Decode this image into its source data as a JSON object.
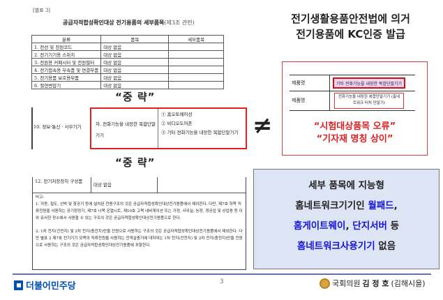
{
  "doc": {
    "annex": "[별표 3]",
    "title": "공급자적합성확인대상 전기용품의 세부품목",
    "title_suffix": "(제3조 관련)",
    "table1": {
      "headers": [
        "분류",
        "품목",
        "세부품목"
      ],
      "rows": [
        [
          "1. 전선 및 전원코드",
          "대상 없음",
          ""
        ],
        [
          "2. 전기기기용 스위치",
          "대상 없음",
          ""
        ],
        [
          "3. 전원용 커패시터 및 전원필터",
          "대상 없음",
          ""
        ],
        [
          "4. 전기접속용 부속품 및 연결부품",
          "대상 없음",
          ""
        ],
        [
          "5. 전기용품 보호용부품",
          "대상 없음",
          ""
        ],
        [
          "6. 절연변압기",
          "대상 없음",
          ""
        ]
      ]
    },
    "omitted": "“중  략”",
    "table2": {
      "category": "10. 정보·통신 · 사무기기",
      "item": "차. 전화기능을 내장한 복합단말기기",
      "details": [
        "① 홈오토메이션",
        "② 비디오도어폰",
        "③ 기타 전화기능을 내장한 복합단말기기"
      ]
    },
    "table3": {
      "category": "12. 전기저장장치 구성품",
      "item": "대상 없음",
      "notes_label": "비고:",
      "note1": "1. 자동, 철도, 선박 및 항공기 등에 설치된 전용구조의 것은 공급자적합성확인대상전기용품에서 제외한다. 다만, 제7호 하목 직류전원을 사용하는 공기청정기, 제7호 너목 온열시트, 제10호 고목 내비게이션 또는 가정, 사무실, 농장, 경공업 및 상업용 등 이와 유사한 장소에서 사용할 수 있는 구조의 것은 공급자적합성확인대상전기용품으로 한다.",
      "note2": "2. 1차 전지(건전지) 및 2차 전지(충전지)만을 전원으로 사용하는 구조의 것은 공급자적합성확인대상전기용품에서 제외한다. 다만 별표 2 제7호 전기기기 모목의 직류전원을 사용하는 전격살충기에 대하여는 1차 전지(건전지) 및 2차 전지(충전지)만을 전원으로 사용하는 구조의 것은 공급자적합성확인대상전기용품에 포함한다."
    }
  },
  "right": {
    "heading_line1": "전기생활용품안전법에 의거",
    "heading_line2": "전기용품에 KC인증 발급",
    "cert_table": {
      "rows": [
        {
          "label": "제품명",
          "value": "기타 전화기능을 내장한 복합단말기기"
        },
        {
          "label": "제품명",
          "value": "전화기능을 내장한 복합단말기기 (홈네트워크 터치 단말기)"
        }
      ]
    },
    "error_line1": "“시험대상품목 오류”",
    "error_line2": "“기자재 명칭 상이”",
    "not_equal": "≠",
    "summary": {
      "p1": "세부 품목에 지능형",
      "p2a": "홈네트워크기기인 ",
      "p2b": "월패드",
      "p2c": ",",
      "p3a": "홈게이트웨이",
      "p3b": ", ",
      "p3c": "단지서버",
      "p3d": " 등",
      "p4a": "홈네트워크사용기기",
      "p4b": " 없음"
    }
  },
  "footer": {
    "party": "더불어민주당",
    "page": "3",
    "member_prefix": "국회의원 ",
    "member_name": "김 정 호",
    "member_district": "(김해시을)"
  },
  "colors": {
    "red": "#e02020",
    "blue": "#1414d8",
    "party_blue": "#0050b4",
    "box_bg": "#dde5f4"
  }
}
